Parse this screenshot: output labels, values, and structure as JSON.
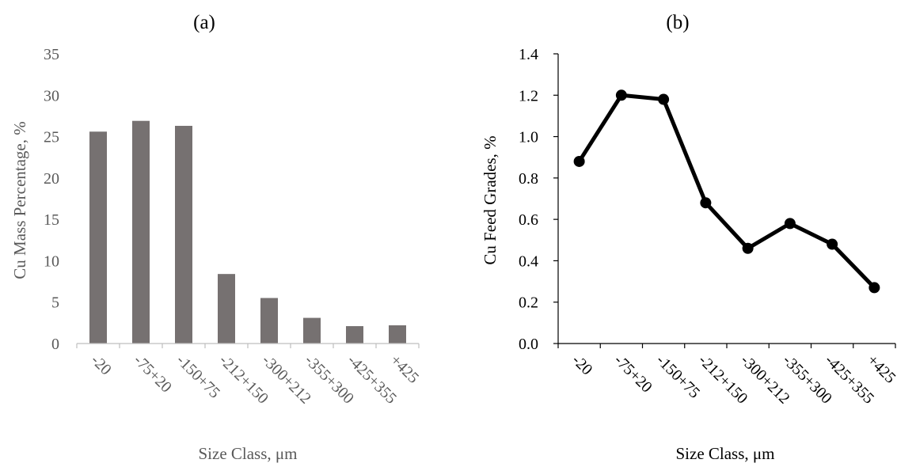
{
  "chart_data": [
    {
      "type": "bar",
      "panel": "(a)",
      "categories": [
        "-20",
        "-75+20",
        "-150+75",
        "-212+150",
        "-300+212",
        "-355+300",
        "-425+355",
        "+425"
      ],
      "values": [
        25.6,
        26.9,
        26.3,
        8.4,
        5.5,
        3.1,
        2.1,
        2.2
      ],
      "ylabel": "Cu Mass Percentage, %",
      "xlabel": "Size Class, μm",
      "ylim": [
        0,
        35
      ],
      "yticks": [
        "0",
        "5",
        "10",
        "15",
        "20",
        "25",
        "30",
        "35"
      ],
      "grid": false,
      "bar_color": "#767171"
    },
    {
      "type": "line",
      "panel": "(b)",
      "categories": [
        "-20",
        "-75+20",
        "-150+75",
        "-212+150",
        "-300+212",
        "-355+300",
        "-425+355",
        "+425"
      ],
      "values": [
        0.88,
        1.2,
        1.18,
        0.68,
        0.46,
        0.58,
        0.48,
        0.27
      ],
      "ylabel": "Cu Feed Grades, %",
      "xlabel": "Size Class, μm",
      "ylim": [
        0,
        1.4
      ],
      "yticks": [
        "0.0",
        "0.2",
        "0.4",
        "0.6",
        "0.8",
        "1.0",
        "1.2",
        "1.4"
      ],
      "grid": false,
      "line_color": "#000000"
    }
  ]
}
